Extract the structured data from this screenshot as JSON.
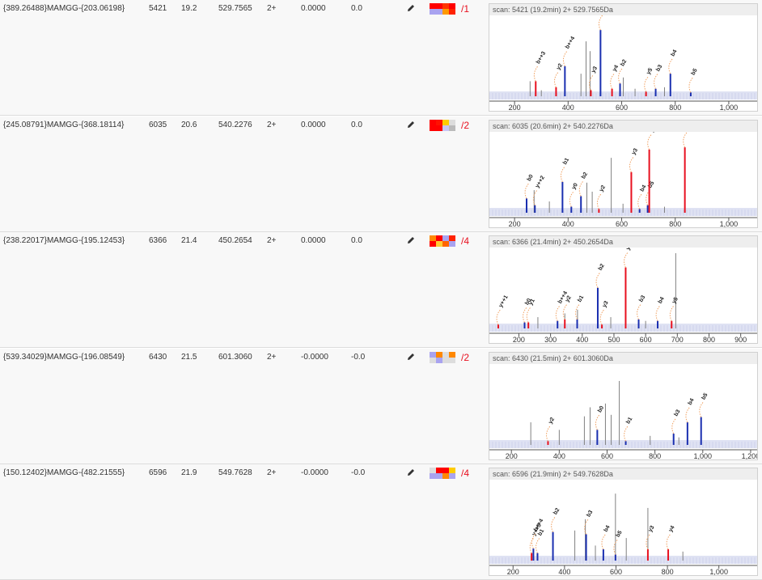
{
  "rows": [
    {
      "cells": [
        "{389.26488}MAMGG-{203.06198}",
        "5421",
        "19.2",
        "529.7565",
        "2+",
        "0.0000",
        "0.0"
      ],
      "tag": "/1",
      "heat": [
        "#ff0000",
        "#ff0000",
        "#ff3300",
        "#ff0000",
        "#a9a3f0",
        "#a9a3f0",
        "#ff9900",
        "#ff2200"
      ],
      "spectrum": {
        "title": "scan: 5421 (19.2min) 2+ 529.7565Da",
        "xlim": [
          106,
          1112
        ],
        "ylim": [
          0,
          100
        ],
        "xticks": [
          200,
          400,
          600,
          800,
          {
            "value": 1000,
            "label": "1,000"
          }
        ],
        "peaks": {
          "mz": [
            279,
            355,
            388,
            485,
            521,
            564,
            594,
            691,
            727,
            782,
            858
          ],
          "intensity": [
            20,
            12,
            40,
            8,
            88,
            10,
            17,
            6,
            10,
            30,
            5
          ],
          "labels": [
            "b++3",
            "y2",
            "b++4",
            "y3",
            "b1",
            "y4",
            "b2",
            "y5",
            "b3",
            "b4",
            "b5"
          ],
          "colors": [
            "#e8101f",
            "#e8101f",
            "#1a2fb0",
            "#e8101f",
            "#1a2fb0",
            "#e8101f",
            "#1a2fb0",
            "#e8101f",
            "#1a2fb0",
            "#1a2fb0",
            "#1a2fb0"
          ]
        },
        "noise": {
          "mz": [
            258,
            448,
            467,
            482,
            606,
            300,
            520,
            650,
            760
          ],
          "intensity": [
            20,
            30,
            73,
            60,
            25,
            8,
            15,
            10,
            12
          ]
        }
      }
    },
    {
      "cells": [
        "{245.08791}MAMGG-{368.18114}",
        "6035",
        "20.6",
        "540.2276",
        "2+",
        "0.0000",
        "0.0"
      ],
      "tag": "/2",
      "heat": [
        "#ff0000",
        "#ff1100",
        "#ffcc00",
        "#dddddd",
        "#ff0000",
        "#ff0000",
        "#c9c6f5",
        "#bbbbbb"
      ],
      "spectrum": {
        "title": "scan: 6035 (20.6min) 2+ 540.2276Da",
        "xlim": [
          106,
          1112
        ],
        "ylim": [
          0,
          100
        ],
        "xticks": [
          200,
          400,
          600,
          800,
          {
            "value": 1000,
            "label": "1,000"
          }
        ],
        "peaks": {
          "mz": [
            245,
            276,
            379,
            412,
            448,
            515,
            636,
            667,
            697,
            703,
            836
          ],
          "intensity": [
            19,
            10,
            41,
            8,
            22,
            5,
            54,
            5,
            10,
            84,
            87
          ],
          "labels": [
            "b0",
            "y++2",
            "b1",
            "y0",
            "b2",
            "y2",
            "y3",
            "b4",
            "b5",
            "y4",
            "y5"
          ],
          "colors": [
            "#1a2fb0",
            "#1a2fb0",
            "#1a2fb0",
            "#1a2fb0",
            "#1a2fb0",
            "#e8101f",
            "#e8101f",
            "#1a2fb0",
            "#1a2fb0",
            "#e8101f",
            "#e8101f"
          ]
        },
        "noise": {
          "mz": [
            273,
            330,
            470,
            490,
            561,
            605,
            760
          ],
          "intensity": [
            30,
            15,
            40,
            28,
            73,
            12,
            8
          ]
        }
      }
    },
    {
      "cells": [
        "{238.22017}MAMGG-{195.12453}",
        "6366",
        "21.4",
        "450.2654",
        "2+",
        "0.0000",
        "0.0"
      ],
      "tag": "/4",
      "heat": [
        "#ff8800",
        "#ff0000",
        "#a9a3f0",
        "#ff2200",
        "#ff0000",
        "#ffcc33",
        "#ff6600",
        "#a9a3f0"
      ],
      "spectrum": {
        "title": "scan: 6366 (21.4min) 2+ 450.2654Da",
        "xlim": [
          107,
          957
        ],
        "ylim": [
          0,
          100
        ],
        "xticks": [
          200,
          300,
          400,
          500,
          600,
          700,
          800,
          900
        ],
        "peaks": {
          "mz": [
            135,
            218,
            230,
            322,
            345,
            384,
            449,
            462,
            537,
            578,
            638,
            682
          ],
          "intensity": [
            5,
            8,
            8,
            10,
            12,
            12,
            54,
            5,
            81,
            12,
            10,
            10
          ],
          "labels": [
            "y++1",
            "b0",
            "y1",
            "b++4",
            "y2",
            "b1",
            "b2",
            "y3",
            "y4",
            "b3",
            "b4",
            "y5"
          ],
          "colors": [
            "#e8101f",
            "#1a2fb0",
            "#e8101f",
            "#1a2fb0",
            "#e8101f",
            "#1a2fb0",
            "#1a2fb0",
            "#e8101f",
            "#e8101f",
            "#1a2fb0",
            "#1a2fb0",
            "#e8101f"
          ]
        },
        "noise": {
          "mz": [
            695,
            385,
            345,
            490,
            260,
            600
          ],
          "intensity": [
            100,
            25,
            20,
            15,
            15,
            10
          ]
        }
      }
    },
    {
      "cells": [
        "{539.34029}MAMGG-{196.08549}",
        "6430",
        "21.5",
        "601.3060",
        "2+",
        "-0.0000",
        "-0.0"
      ],
      "tag": "/2",
      "heat": [
        "#a9a3f0",
        "#ff8800",
        "#dddddd",
        "#ff8800",
        "#dddddd",
        "#a9a3f0",
        "#dddddd",
        "#dddddd"
      ],
      "spectrum": {
        "title": "scan: 6430 (21.5min) 2+ 601.3060Da",
        "xlim": [
          108,
          1234
        ],
        "ylim": [
          0,
          100
        ],
        "xticks": [
          200,
          400,
          600,
          800,
          {
            "value": 1000,
            "label": "1,000"
          },
          {
            "value": 1200,
            "label": "1,200"
          }
        ],
        "peaks": {
          "mz": [
            353,
            559,
            678,
            878,
            936,
            993
          ],
          "intensity": [
            5,
            20,
            5,
            15,
            30,
            37
          ],
          "labels": [
            "y2",
            "b0",
            "b1",
            "b3",
            "b4",
            "b5"
          ],
          "colors": [
            "#e8101f",
            "#1a2fb0",
            "#1a2fb0",
            "#1a2fb0",
            "#1a2fb0",
            "#1a2fb0"
          ]
        },
        "noise": {
          "mz": [
            651,
            505,
            529,
            593,
            617,
            281,
            400,
            780,
            900
          ],
          "intensity": [
            85,
            38,
            50,
            55,
            40,
            30,
            20,
            12,
            10
          ]
        }
      }
    },
    {
      "cells": [
        "{150.12402}MAMGG-{482.21555}",
        "6596",
        "21.9",
        "549.7628",
        "2+",
        "-0.0000",
        "-0.0"
      ],
      "tag": "/4",
      "heat": [
        "#dddddd",
        "#ff0000",
        "#ff0000",
        "#ffcc00",
        "#a9a3f0",
        "#a9a3f0",
        "#ff8800",
        "#a9a3f0"
      ],
      "spectrum": {
        "title": "scan: 6596 (21.9min) 2+ 549.7628Da",
        "xlim": [
          108,
          1155
        ],
        "ylim": [
          0,
          100
        ],
        "xticks": [
          200,
          400,
          600,
          800,
          {
            "value": 1000,
            "label": "1,000"
          }
        ],
        "peaks": {
          "mz": [
            272,
            279,
            295,
            355,
            484,
            551,
            598,
            724,
            803
          ],
          "intensity": [
            10,
            16,
            10,
            38,
            35,
            15,
            8,
            15,
            15
          ],
          "labels": [
            "y++3",
            "b++4",
            "b1",
            "b2",
            "b3",
            "b4",
            "b5",
            "y3",
            "y4"
          ],
          "colors": [
            "#e8101f",
            "#1a2fb0",
            "#1a2fb0",
            "#1a2fb0",
            "#1a2fb0",
            "#1a2fb0",
            "#1a2fb0",
            "#e8101f",
            "#e8101f"
          ]
        },
        "noise": {
          "mz": [
            598,
            724,
            481,
            440,
            640,
            520,
            860
          ],
          "intensity": [
            89,
            70,
            55,
            40,
            30,
            20,
            12
          ]
        }
      }
    }
  ]
}
